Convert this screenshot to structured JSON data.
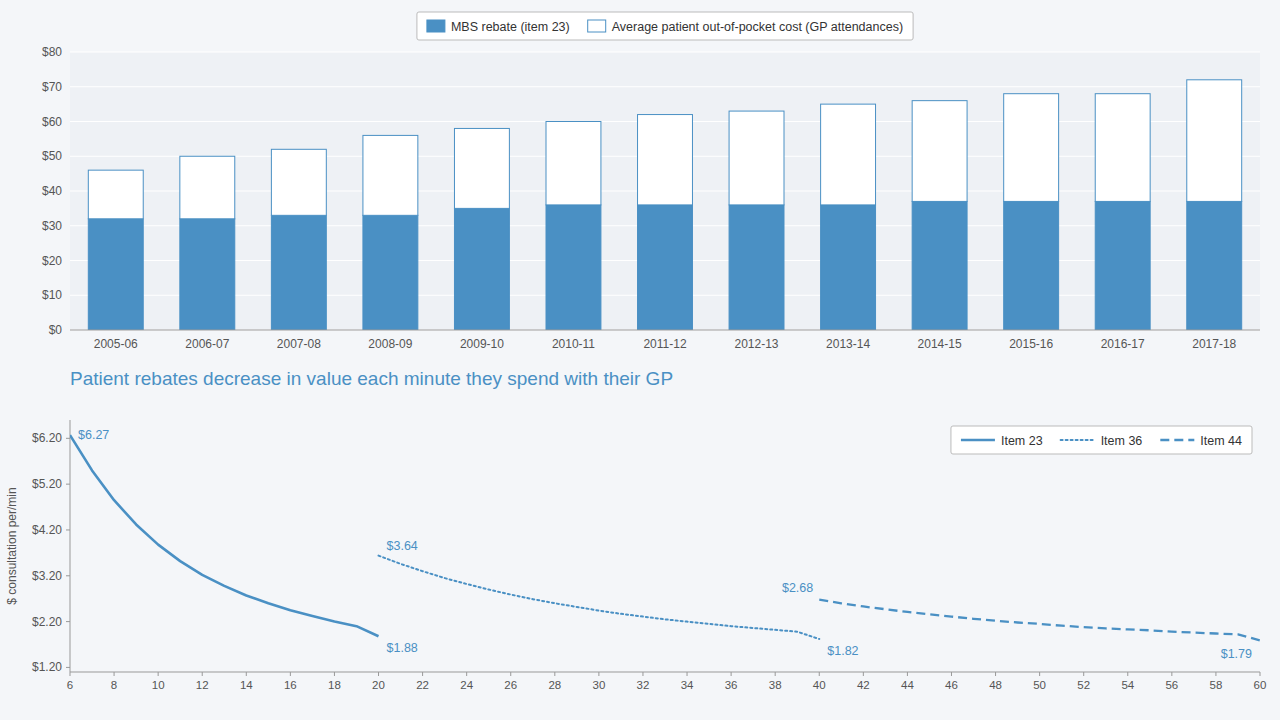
{
  "chart_data": [
    {
      "type": "bar",
      "stacked": true,
      "grid": true,
      "legend": "upper center",
      "categories": [
        "2005-06",
        "2006-07",
        "2007-08",
        "2008-09",
        "2009-10",
        "2010-11",
        "2011-12",
        "2012-13",
        "2013-14",
        "2014-15",
        "2015-16",
        "2016-17",
        "2017-18"
      ],
      "series": [
        {
          "name": "MBS rebate (item 23)",
          "color": "#4a90c4",
          "values": [
            32,
            32,
            33,
            33,
            35,
            36,
            36,
            36,
            36,
            37,
            37,
            37,
            37
          ]
        },
        {
          "name": "Average patient out-of-pocket cost (GP attendances)",
          "color": "#ffffff",
          "values": [
            14,
            18,
            19,
            23,
            23,
            24,
            26,
            27,
            29,
            29,
            31,
            31,
            35
          ]
        }
      ],
      "ylim": [
        0,
        80
      ],
      "yticks": [
        {
          "value": 0,
          "label": "$0"
        },
        {
          "value": 10,
          "label": "$10"
        },
        {
          "value": 20,
          "label": "$20"
        },
        {
          "value": 30,
          "label": "$30"
        },
        {
          "value": 40,
          "label": "$40"
        },
        {
          "value": 50,
          "label": "$50"
        },
        {
          "value": 60,
          "label": "$60"
        },
        {
          "value": 70,
          "label": "$70"
        },
        {
          "value": 80,
          "label": "$80"
        }
      ]
    },
    {
      "type": "line",
      "title": "Patient rebates decrease in value each minute they spend with their GP",
      "y_label": "$ consultation per/min",
      "grid": false,
      "legend": "upper right",
      "series": [
        {
          "name": "Item 23",
          "color": "#4a90c4",
          "line_style": "solid",
          "x": [
            6,
            7,
            8,
            9,
            10,
            11,
            12,
            13,
            14,
            15,
            16,
            17,
            18,
            19,
            20
          ],
          "values": [
            6.27,
            5.5,
            4.85,
            4.32,
            3.88,
            3.52,
            3.22,
            2.98,
            2.77,
            2.6,
            2.45,
            2.32,
            2.2,
            2.1,
            1.88
          ]
        },
        {
          "name": "Item 36",
          "color": "#4a90c4",
          "line_style": "dotted",
          "x": [
            20,
            21,
            22,
            23,
            24,
            25,
            26,
            27,
            28,
            29,
            30,
            31,
            32,
            33,
            34,
            35,
            36,
            37,
            38,
            39,
            40
          ],
          "values": [
            3.64,
            3.46,
            3.3,
            3.15,
            3.02,
            2.9,
            2.79,
            2.69,
            2.6,
            2.52,
            2.44,
            2.37,
            2.31,
            2.25,
            2.2,
            2.15,
            2.1,
            2.06,
            2.02,
            1.98,
            1.82
          ]
        },
        {
          "name": "Item 44",
          "color": "#4a90c4",
          "line_style": "dashed",
          "x": [
            40,
            41,
            42,
            43,
            44,
            45,
            46,
            47,
            48,
            49,
            50,
            51,
            52,
            53,
            54,
            55,
            56,
            57,
            58,
            59,
            60
          ],
          "values": [
            2.68,
            2.6,
            2.53,
            2.47,
            2.41,
            2.36,
            2.31,
            2.26,
            2.22,
            2.18,
            2.15,
            2.11,
            2.08,
            2.05,
            2.03,
            2.01,
            1.98,
            1.96,
            1.94,
            1.92,
            1.79
          ]
        }
      ],
      "annotations": [
        {
          "text": "$6.27",
          "x": 6,
          "y": 6.27
        },
        {
          "text": "$1.88",
          "x": 20,
          "y": 1.88
        },
        {
          "text": "$3.64",
          "x": 20,
          "y": 3.64
        },
        {
          "text": "$1.82",
          "x": 40,
          "y": 1.82
        },
        {
          "text": "$2.68",
          "x": 40,
          "y": 2.68
        },
        {
          "text": "$1.79",
          "x": 60,
          "y": 1.79
        }
      ],
      "xlim": [
        6,
        60
      ],
      "xticks": [
        6,
        8,
        10,
        12,
        14,
        16,
        18,
        20,
        22,
        24,
        26,
        28,
        30,
        32,
        34,
        36,
        38,
        40,
        42,
        44,
        46,
        48,
        50,
        52,
        54,
        56,
        58,
        60
      ],
      "ylim": [
        1.1,
        6.6
      ],
      "yticks": [
        {
          "value": 1.2,
          "label": "$1.20"
        },
        {
          "value": 2.2,
          "label": "$2.20"
        },
        {
          "value": 3.2,
          "label": "$3.20"
        },
        {
          "value": 4.2,
          "label": "$4.20"
        },
        {
          "value": 5.2,
          "label": "$5.20"
        },
        {
          "value": 6.2,
          "label": "$6.20"
        }
      ]
    }
  ]
}
